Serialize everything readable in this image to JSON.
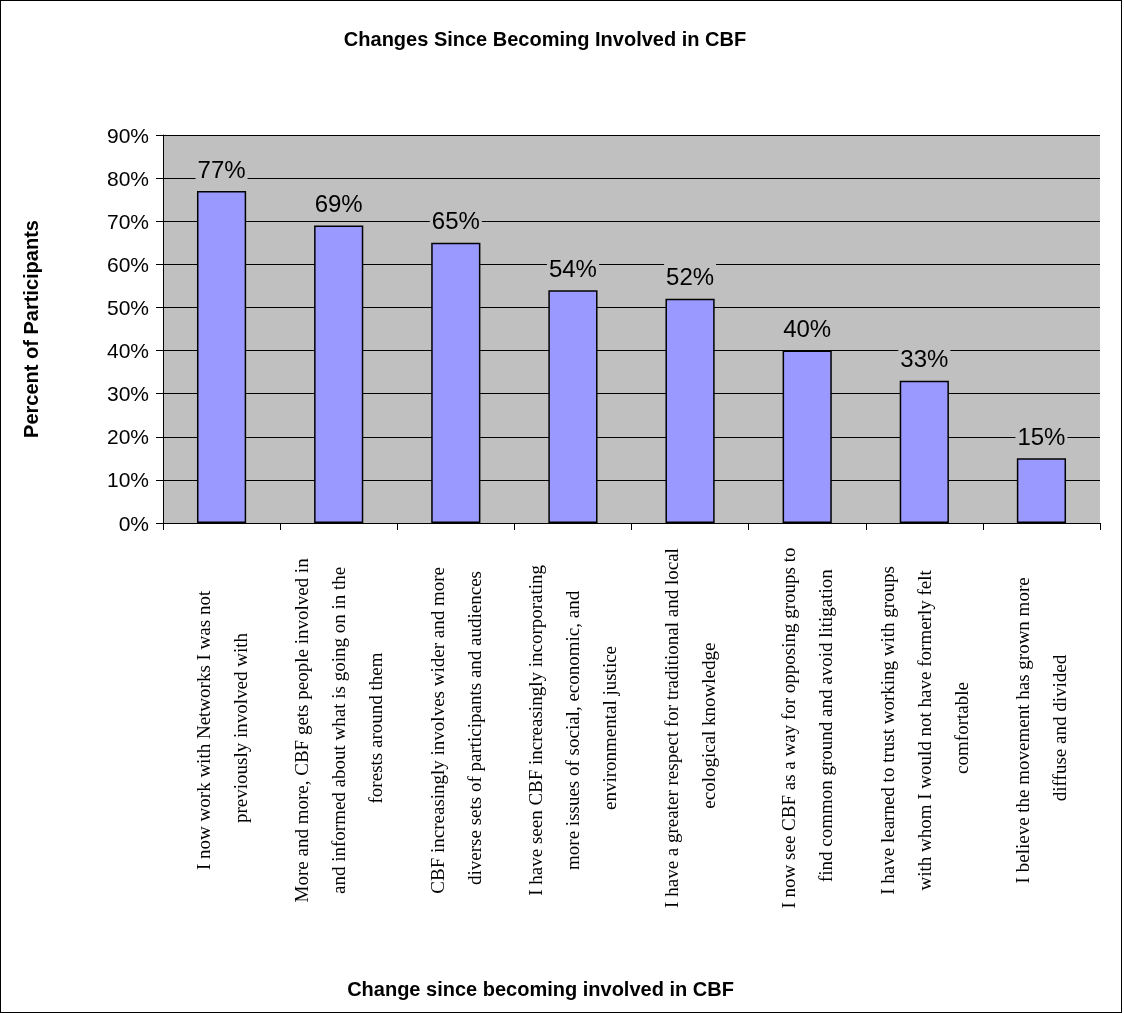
{
  "chart_data": {
    "type": "bar",
    "title": "Changes Since Becoming Involved in CBF",
    "xlabel": "Change since becoming involved in CBF",
    "ylabel": "Percent of Participants",
    "categories": [
      "I now work with Networks I was not previously involved with",
      "More and more, CBF gets people involved in and informed about what is going on in the forests around them",
      "CBF increasingly involves wider and more diverse sets of participants and audiences",
      "I have seen CBF increasingly incorporating more issues of social, economic, and environmental justice",
      "I have a greater respect for traditional and local ecological knowledge",
      "I now see CBF as a way for opposing groups to find common ground and avoid litigation",
      "I have learned to trust working with groups with whom I would not have formerly felt comfortable",
      "I believe the movement has grown more diffuse and divided"
    ],
    "values": [
      77,
      69,
      65,
      54,
      52,
      40,
      33,
      15
    ],
    "color": "#9999ff",
    "value_labels": [
      "77%",
      "69%",
      "65%",
      "54%",
      "52%",
      "40%",
      "33%",
      "15%"
    ],
    "ylim": [
      0,
      90
    ],
    "yticks": [
      {
        "value": 0,
        "label": "0%"
      },
      {
        "value": 10,
        "label": "10%"
      },
      {
        "value": 20,
        "label": "20%"
      },
      {
        "value": 30,
        "label": "30%"
      },
      {
        "value": 40,
        "label": "40%"
      },
      {
        "value": 50,
        "label": "50%"
      },
      {
        "value": 60,
        "label": "60%"
      },
      {
        "value": 70,
        "label": "70%"
      },
      {
        "value": 80,
        "label": "80%"
      },
      {
        "value": 90,
        "label": "90%"
      }
    ],
    "grid": "y"
  }
}
